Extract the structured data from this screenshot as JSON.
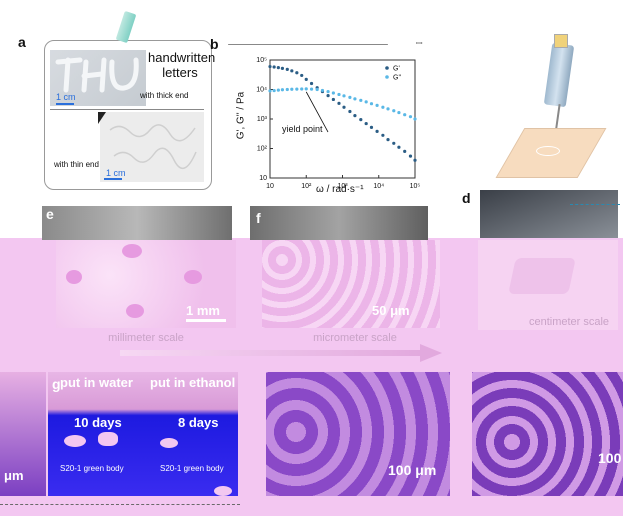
{
  "panels": {
    "a": {
      "letter": "a",
      "title": "handwritten letters",
      "scale_top": "1 cm",
      "scale_bottom": "1 cm",
      "thick": "with thick end",
      "thin": "with thin end"
    },
    "b": {
      "letter": "b",
      "ylabel": "G', G'' / Pa",
      "xlabel": "ω / rad·s⁻¹",
      "annotation": "yield point"
    },
    "d": {
      "letter": "d",
      "caption": "centimeter scale"
    },
    "e": {
      "letter": "e",
      "scalebar": "1 mm",
      "caption": "millimeter scale"
    },
    "f": {
      "letter": "f",
      "scalebar": "50 μm",
      "caption": "micrometer scale"
    },
    "g": {
      "letter": "g",
      "water": "put in water",
      "ethanol": "put in ethanol",
      "days_left": "10 days",
      "days_right": "8 days",
      "body_left": "S20-1 green body",
      "body_right": "S20-1 green body"
    },
    "bottom": {
      "left_scale": "μm",
      "middle_scale": "100 μm",
      "right_scale": "100"
    }
  },
  "chart_data": {
    "type": "scatter",
    "xlabel": "ω / rad·s⁻¹",
    "ylabel": "G', G'' / Pa",
    "xscale": "log",
    "yscale": "log",
    "xlim": [
      10,
      100000
    ],
    "ylim": [
      10,
      100000
    ],
    "xticks": [
      "10",
      "10²",
      "10³",
      "10⁴",
      "10⁵"
    ],
    "yticks": [
      "10",
      "10²",
      "10³",
      "10⁴",
      "10⁵"
    ],
    "series": [
      {
        "name": "G'",
        "color": "#2b5d85",
        "x": [
          10,
          13,
          17,
          22,
          30,
          40,
          55,
          75,
          100,
          140,
          200,
          280,
          400,
          560,
          800,
          1100,
          1600,
          2200,
          3200,
          4500,
          6300,
          9000,
          13000,
          18000,
          26000,
          36000,
          52000,
          75000,
          100000
        ],
        "y": [
          60000,
          58000,
          55000,
          52000,
          48000,
          43000,
          37000,
          30000,
          22000,
          16000,
          11500,
          8500,
          6200,
          4600,
          3400,
          2500,
          1800,
          1300,
          950,
          700,
          520,
          380,
          280,
          200,
          150,
          110,
          80,
          55,
          40
        ]
      },
      {
        "name": "G''",
        "color": "#5ab8e6",
        "x": [
          10,
          13,
          17,
          22,
          30,
          40,
          55,
          75,
          100,
          140,
          200,
          280,
          400,
          560,
          800,
          1100,
          1600,
          2200,
          3200,
          4500,
          6300,
          9000,
          13000,
          18000,
          26000,
          36000,
          52000,
          75000,
          100000
        ],
        "y": [
          9000,
          9200,
          9500,
          9800,
          10000,
          10200,
          10300,
          10400,
          10500,
          10300,
          10000,
          9300,
          8500,
          7600,
          6800,
          6100,
          5400,
          4800,
          4300,
          3800,
          3300,
          2900,
          2500,
          2200,
          1900,
          1650,
          1400,
          1200,
          1000
        ]
      }
    ],
    "annotations": [
      "yield point"
    ],
    "legend": "top-right"
  }
}
